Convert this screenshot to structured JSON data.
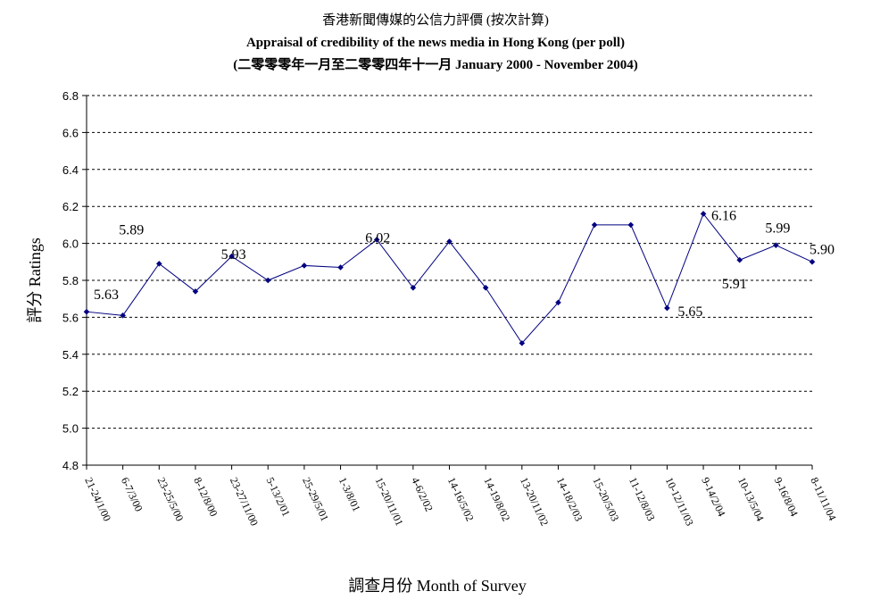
{
  "chart_data": {
    "type": "line",
    "title": "香港新聞傳媒的公信力評價 (按次計算)",
    "subtitle": "Appraisal of credibility of the news media in Hong Kong (per poll)",
    "subtitle2": "(二零零零年一月至二零零四年十一月 January 2000 - November 2004)",
    "xlabel": "調查月份 Month of Survey",
    "ylabel": "評分 Ratings",
    "ylim": [
      4.8,
      6.8
    ],
    "yticks": [
      "4.8",
      "5.0",
      "5.2",
      "5.4",
      "5.6",
      "5.8",
      "6.0",
      "6.2",
      "6.4",
      "6.6",
      "6.8"
    ],
    "grid": true,
    "line_color": "#000080",
    "categories": [
      "21-24/1/00",
      "6-7/3/00",
      "23-25/5/00",
      "8-12/8/00",
      "23-27/11/00",
      "5-13/2/01",
      "25-29/5/01",
      "1-3/8/01",
      "15-20/11/01",
      "4-6/2/02",
      "14-16/5/02",
      "14-19/8/02",
      "13-20/11/02",
      "14-18/2/03",
      "15-20/5/03",
      "11-12/8/03",
      "10-12/11/03",
      "9-14/2/04",
      "10-13/5/04",
      "9-16/8/04",
      "8-11/11/04"
    ],
    "values": [
      5.63,
      5.61,
      5.89,
      5.74,
      5.93,
      5.8,
      5.88,
      5.87,
      6.02,
      5.76,
      6.01,
      5.76,
      5.46,
      5.68,
      6.1,
      6.1,
      5.65,
      6.16,
      5.91,
      5.99,
      5.9
    ],
    "data_labels": [
      {
        "index": 0,
        "text": "5.63"
      },
      {
        "index": 2,
        "text": "5.89"
      },
      {
        "index": 4,
        "text": "5.93"
      },
      {
        "index": 8,
        "text": "6.02"
      },
      {
        "index": 16,
        "text": "5.65"
      },
      {
        "index": 17,
        "text": "6.16"
      },
      {
        "index": 18,
        "text": "5.91"
      },
      {
        "index": 19,
        "text": "5.99"
      },
      {
        "index": 20,
        "text": "5.90"
      }
    ]
  }
}
